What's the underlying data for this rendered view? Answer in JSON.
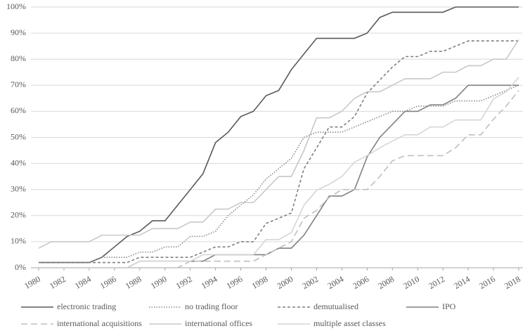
{
  "chart_data": {
    "type": "line",
    "x": [
      1980,
      1981,
      1982,
      1983,
      1984,
      1985,
      1986,
      1987,
      1988,
      1989,
      1990,
      1991,
      1992,
      1993,
      1994,
      1995,
      1996,
      1997,
      1998,
      1999,
      2000,
      2001,
      2002,
      2003,
      2004,
      2005,
      2006,
      2007,
      2008,
      2009,
      2010,
      2011,
      2012,
      2013,
      2014,
      2015,
      2016,
      2017,
      2018
    ],
    "xlim": [
      1980,
      2018
    ],
    "xticks": [
      1980,
      1982,
      1984,
      1986,
      1988,
      1990,
      1992,
      1994,
      1996,
      1998,
      2000,
      2002,
      2004,
      2006,
      2008,
      2010,
      2012,
      2014,
      2016,
      2018
    ],
    "ylim": [
      0,
      100
    ],
    "yticks": [
      {
        "value": 0,
        "label": "0%"
      },
      {
        "value": 10,
        "label": "10%"
      },
      {
        "value": 20,
        "label": "20%"
      },
      {
        "value": 30,
        "label": "30%"
      },
      {
        "value": 40,
        "label": "40%"
      },
      {
        "value": 50,
        "label": "50%"
      },
      {
        "value": 60,
        "label": "60%"
      },
      {
        "value": 70,
        "label": "70%"
      },
      {
        "value": 80,
        "label": "80%"
      },
      {
        "value": 90,
        "label": "90%"
      },
      {
        "value": 100,
        "label": "100%"
      }
    ],
    "grid": true,
    "series": [
      {
        "name": "electronic trading",
        "color": "#595959",
        "dash": "solid",
        "values": [
          2,
          2,
          2,
          2,
          2,
          4,
          8,
          12,
          14,
          18,
          18,
          24,
          30,
          36,
          48,
          52,
          58,
          60,
          66,
          68,
          76,
          82,
          88,
          88,
          88,
          88,
          90,
          96,
          98,
          98,
          98,
          98,
          98,
          100,
          100,
          100,
          100,
          100,
          100
        ]
      },
      {
        "name": "no trading floor",
        "color": "#8c8c8c",
        "dash": "dotted",
        "values": [
          2,
          2,
          2,
          2,
          2,
          4,
          4,
          4,
          6,
          6,
          8,
          8,
          12,
          12,
          14,
          20,
          24,
          28,
          34,
          38,
          42,
          50,
          52,
          52,
          52,
          54,
          56,
          58,
          60,
          60,
          62,
          62,
          62,
          64,
          64,
          64,
          66,
          68,
          70
        ]
      },
      {
        "name": "demutualised",
        "color": "#7f7f7f",
        "dash": "dashed",
        "values": [
          2,
          2,
          2,
          2,
          2,
          2,
          2,
          2,
          4,
          4,
          4,
          4,
          4,
          6,
          8,
          8,
          10,
          10,
          17,
          19,
          21,
          38,
          46,
          54,
          54,
          58,
          67,
          72,
          77,
          81,
          81,
          83,
          83,
          85,
          87,
          87,
          87,
          87,
          87
        ]
      },
      {
        "name": "IPO",
        "color": "#808080",
        "dash": "solid",
        "values": [
          0,
          0,
          0,
          0,
          0,
          0,
          0,
          0,
          2.5,
          2.5,
          2.5,
          2.5,
          2.5,
          2.5,
          5,
          5,
          5,
          5,
          5,
          7.5,
          7.5,
          12.5,
          20,
          27.5,
          27.5,
          30,
          42.5,
          50,
          55,
          60,
          60,
          62.5,
          62.5,
          65,
          70,
          70,
          70,
          70,
          70
        ]
      },
      {
        "name": "international acquisitions",
        "color": "#bfbfbf",
        "dash": "longdash",
        "values": [
          0,
          0,
          0,
          0,
          0,
          0,
          0,
          0,
          0,
          0,
          0,
          0,
          2.5,
          2.5,
          2.5,
          2.5,
          2.5,
          2.5,
          5,
          7.5,
          10,
          19,
          22,
          27,
          30,
          30,
          30,
          35,
          41,
          43,
          43,
          43,
          43,
          46,
          51,
          51,
          57,
          62,
          68
        ]
      },
      {
        "name": "international offices",
        "color": "#c8c8c8",
        "dash": "solid",
        "values": [
          7.5,
          10,
          10,
          10,
          10,
          12.5,
          12.5,
          12.5,
          12.5,
          15,
          15,
          15,
          17.5,
          17.5,
          22.5,
          22.5,
          25,
          25,
          30,
          35,
          35,
          45,
          57.5,
          57.5,
          60,
          65,
          67.5,
          67.5,
          70,
          72.5,
          72.5,
          72.5,
          75,
          75,
          77.5,
          77.5,
          80,
          80,
          87.5
        ]
      },
      {
        "name": "multiple asset classes",
        "color": "#d6d6d6",
        "dash": "solid",
        "values": [
          0,
          0,
          0,
          0,
          0,
          0,
          0,
          0,
          2.5,
          2.5,
          2.5,
          2.5,
          2.5,
          5,
          5,
          5,
          5,
          5,
          10.8,
          10.8,
          13.5,
          24,
          29.7,
          32,
          35,
          40.5,
          43,
          46,
          48.6,
          51,
          51,
          54,
          54,
          56.7,
          56.7,
          56.7,
          64.8,
          67.5,
          73
        ]
      }
    ]
  }
}
